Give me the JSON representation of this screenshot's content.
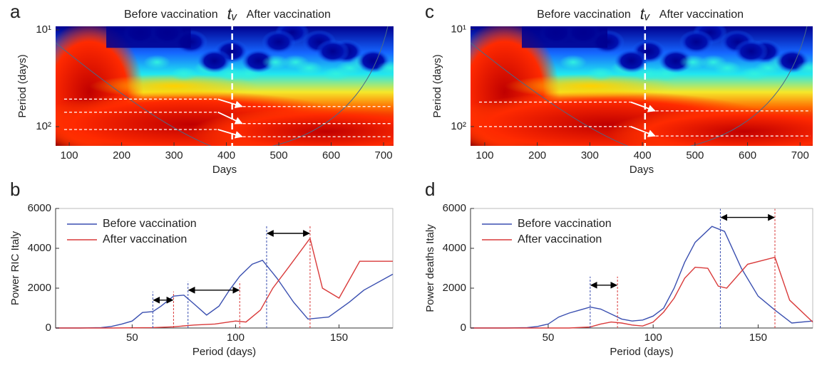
{
  "chart_data": [
    {
      "type": "spectrogram",
      "panel": "a",
      "x_label": "Days",
      "y_label": "Period (days)",
      "xlim": [
        74,
        719
      ],
      "xticks": [
        100,
        200,
        300,
        400,
        500,
        600,
        700
      ],
      "ylim": [
        158,
        9.2
      ],
      "yticks": [
        {
          "value": 10,
          "label": "10¹"
        },
        {
          "value": 100,
          "label": "10²"
        }
      ],
      "log_y": true,
      "vaccination": {
        "x": 411,
        "label": "tᵥ"
      },
      "before_label": "Before vaccination",
      "after_label": "After vaccination",
      "before_periods": [
        52,
        71,
        107
      ],
      "after_periods": [
        62,
        93,
        127
      ]
    },
    {
      "type": "line",
      "panel": "b",
      "x_label": "Period (days)",
      "y_label": "Power RIC Italy",
      "xlim": [
        13,
        176
      ],
      "xticks": [
        50,
        100,
        150
      ],
      "ylim": [
        0,
        6000
      ],
      "yticks": [
        0,
        2000,
        4000,
        6000
      ],
      "series": [
        {
          "name": "Before vaccination",
          "color": "#3a4fb0",
          "x": [
            13,
            25,
            35,
            40,
            45,
            50,
            55,
            60,
            64,
            70,
            75,
            80,
            86,
            92,
            97,
            102,
            108,
            113,
            120,
            128,
            135,
            145,
            155,
            162,
            176
          ],
          "values": [
            0,
            0,
            20,
            80,
            200,
            350,
            780,
            820,
            1100,
            1600,
            1650,
            1200,
            650,
            1100,
            1900,
            2600,
            3200,
            3400,
            2500,
            1300,
            450,
            550,
            1300,
            1900,
            2700
          ]
        },
        {
          "name": "After vaccination",
          "color": "#d93a3a",
          "x": [
            13,
            40,
            60,
            70,
            80,
            90,
            100,
            105,
            112,
            118,
            126,
            136,
            142,
            150,
            160,
            176
          ],
          "values": [
            0,
            0,
            20,
            60,
            150,
            200,
            350,
            300,
            900,
            2000,
            3100,
            4500,
            2000,
            1500,
            3350,
            3350
          ]
        }
      ],
      "arrows": [
        {
          "from": 60,
          "to": 70,
          "y": 1400
        },
        {
          "from": 77,
          "to": 102,
          "y": 1900
        },
        {
          "from": 115,
          "to": 136,
          "y": 4750
        }
      ]
    },
    {
      "type": "spectrogram",
      "panel": "c",
      "x_label": "Days",
      "y_label": "Period (days)",
      "xlim": [
        73,
        724
      ],
      "xticks": [
        100,
        200,
        300,
        400,
        500,
        600,
        700
      ],
      "ylim": [
        158,
        9.3
      ],
      "yticks": [
        {
          "value": 10,
          "label": "10¹"
        },
        {
          "value": 100,
          "label": "10²"
        }
      ],
      "log_y": true,
      "vaccination": {
        "x": 405,
        "label": "tᵥ"
      },
      "before_label": "Before vaccination",
      "after_label": "After vaccination",
      "before_periods": [
        56,
        100
      ],
      "after_periods": [
        69,
        125
      ]
    },
    {
      "type": "line",
      "panel": "d",
      "x_label": "Period (days)",
      "y_label": "Power deaths Italy",
      "xlim": [
        13,
        176
      ],
      "xticks": [
        50,
        100,
        150
      ],
      "ylim": [
        0,
        6000
      ],
      "yticks": [
        0,
        2000,
        4000,
        6000
      ],
      "series": [
        {
          "name": "Before vaccination",
          "color": "#3a4fb0",
          "x": [
            13,
            30,
            40,
            45,
            50,
            55,
            60,
            65,
            70,
            75,
            80,
            85,
            90,
            95,
            100,
            105,
            110,
            115,
            120,
            128,
            134,
            142,
            150,
            158,
            166,
            176
          ],
          "values": [
            0,
            0,
            20,
            80,
            200,
            550,
            750,
            900,
            1050,
            950,
            700,
            450,
            350,
            400,
            600,
            1000,
            2000,
            3300,
            4300,
            5100,
            4850,
            3000,
            1600,
            900,
            250,
            350
          ]
        },
        {
          "name": "After vaccination",
          "color": "#d93a3a",
          "x": [
            13,
            60,
            70,
            75,
            80,
            85,
            90,
            95,
            100,
            105,
            110,
            115,
            120,
            126,
            131,
            135,
            145,
            158,
            165,
            176
          ],
          "values": [
            0,
            0,
            50,
            200,
            300,
            250,
            150,
            100,
            300,
            800,
            1500,
            2500,
            3050,
            3000,
            2100,
            2000,
            3200,
            3550,
            1400,
            300
          ]
        }
      ],
      "arrows": [
        {
          "from": 70,
          "to": 83,
          "y": 2150
        },
        {
          "from": 132,
          "to": 158,
          "y": 5550
        }
      ]
    }
  ]
}
